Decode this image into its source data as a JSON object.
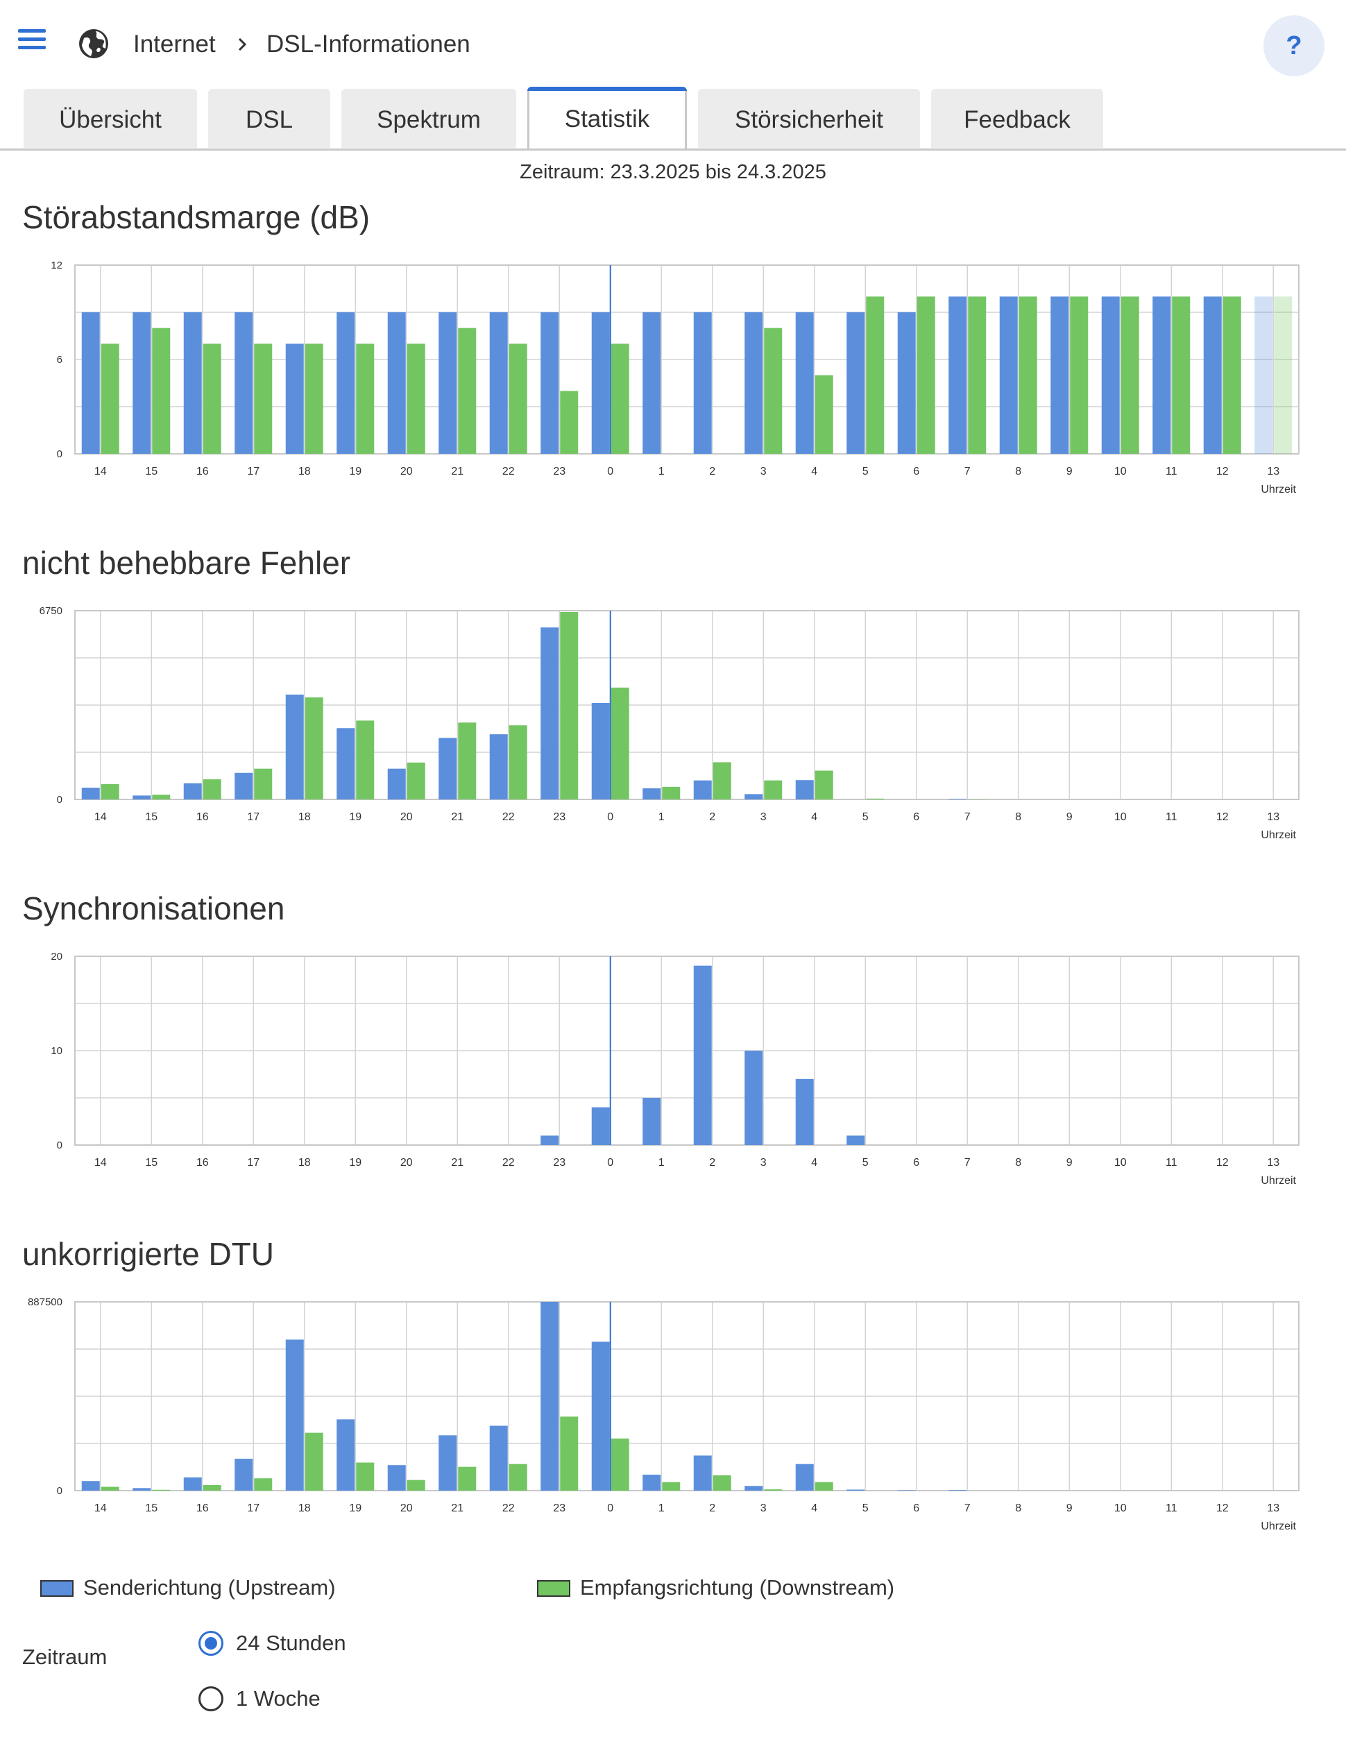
{
  "header": {
    "breadcrumb": [
      "Internet",
      "DSL-Informationen"
    ],
    "help_label": "?",
    "menu_icon": "hamburger-menu-icon",
    "section_icon": "globe-icon"
  },
  "tabs": [
    {
      "label": "Übersicht",
      "active": false
    },
    {
      "label": "DSL",
      "active": false
    },
    {
      "label": "Spektrum",
      "active": false
    },
    {
      "label": "Statistik",
      "active": true
    },
    {
      "label": "Störsicherheit",
      "active": false
    },
    {
      "label": "Feedback",
      "active": false
    }
  ],
  "period_text": "Zeitraum: 23.3.2025 bis 24.3.2025",
  "colors": {
    "upstream": "#5b8fdc",
    "downstream": "#73c562",
    "accent": "#2f6fd3",
    "grid": "#d4d4d4"
  },
  "legend": {
    "upstream": "Senderichtung (Upstream)",
    "downstream": "Empfangsrichtung (Downstream)"
  },
  "zeitraum": {
    "label": "Zeitraum",
    "options": [
      {
        "label": "24 Stunden",
        "checked": true
      },
      {
        "label": "1 Woche",
        "checked": false
      }
    ]
  },
  "chart_data": [
    {
      "type": "bar",
      "title": "Störabstandsmarge (dB)",
      "xlabel": "Uhrzeit",
      "ylabel": "",
      "ylim": [
        0,
        12
      ],
      "y_tick_labels": [
        "0",
        "6",
        "12"
      ],
      "categories": [
        "14",
        "15",
        "16",
        "17",
        "18",
        "19",
        "20",
        "21",
        "22",
        "23",
        "0",
        "1",
        "2",
        "3",
        "4",
        "5",
        "6",
        "7",
        "8",
        "9",
        "10",
        "11",
        "12",
        "13"
      ],
      "current_hour_index": 23,
      "series": [
        {
          "name": "Senderichtung (Upstream)",
          "values": [
            9,
            9,
            9,
            9,
            7,
            9,
            9,
            9,
            9,
            9,
            9,
            9,
            9,
            9,
            9,
            9,
            9,
            10,
            10,
            10,
            10,
            10,
            10,
            10
          ]
        },
        {
          "name": "Empfangsrichtung (Downstream)",
          "values": [
            7,
            8,
            7,
            7,
            7,
            7,
            7,
            8,
            7,
            4,
            7,
            null,
            null,
            8,
            5,
            10,
            10,
            10,
            10,
            10,
            10,
            10,
            10,
            10
          ]
        }
      ]
    },
    {
      "type": "bar",
      "title": "nicht behebbare Fehler",
      "xlabel": "Uhrzeit",
      "ylabel": "",
      "ylim": [
        0,
        6750
      ],
      "y_tick_labels": [
        "0",
        "6750"
      ],
      "categories": [
        "14",
        "15",
        "16",
        "17",
        "18",
        "19",
        "20",
        "21",
        "22",
        "23",
        "0",
        "1",
        "2",
        "3",
        "4",
        "5",
        "6",
        "7",
        "8",
        "9",
        "10",
        "11",
        "12",
        "13"
      ],
      "current_hour_index": null,
      "series": [
        {
          "name": "Senderichtung (Upstream)",
          "values": [
            420,
            140,
            580,
            950,
            3750,
            2550,
            1100,
            2200,
            2330,
            6150,
            3450,
            400,
            680,
            190,
            690,
            0,
            0,
            20,
            0,
            0,
            0,
            0,
            0,
            0
          ]
        },
        {
          "name": "Empfangsrichtung (Downstream)",
          "values": [
            550,
            170,
            720,
            1100,
            3650,
            2820,
            1320,
            2750,
            2650,
            6700,
            4000,
            450,
            1330,
            680,
            1030,
            30,
            0,
            10,
            0,
            0,
            0,
            0,
            0,
            0
          ]
        }
      ]
    },
    {
      "type": "bar",
      "title": "Synchronisationen",
      "xlabel": "Uhrzeit",
      "ylabel": "",
      "ylim": [
        0,
        20
      ],
      "y_tick_labels": [
        "0",
        "10",
        "20"
      ],
      "categories": [
        "14",
        "15",
        "16",
        "17",
        "18",
        "19",
        "20",
        "21",
        "22",
        "23",
        "0",
        "1",
        "2",
        "3",
        "4",
        "5",
        "6",
        "7",
        "8",
        "9",
        "10",
        "11",
        "12",
        "13"
      ],
      "current_hour_index": null,
      "series": [
        {
          "name": "Senderichtung (Upstream)",
          "values": [
            0,
            0,
            0,
            0,
            0,
            0,
            0,
            0,
            0,
            1,
            4,
            5,
            19,
            10,
            7,
            1,
            0,
            0,
            0,
            0,
            0,
            0,
            0,
            0
          ]
        },
        {
          "name": "Empfangsrichtung (Downstream)",
          "values": [
            0,
            0,
            0,
            0,
            0,
            0,
            0,
            0,
            0,
            0,
            0,
            0,
            0,
            0,
            0,
            0,
            0,
            0,
            0,
            0,
            0,
            0,
            0,
            0
          ]
        }
      ]
    },
    {
      "type": "bar",
      "title": "unkorrigierte DTU",
      "xlabel": "Uhrzeit",
      "ylabel": "",
      "ylim": [
        0,
        887500
      ],
      "y_tick_labels": [
        "0",
        "887500"
      ],
      "categories": [
        "14",
        "15",
        "16",
        "17",
        "18",
        "19",
        "20",
        "21",
        "22",
        "23",
        "0",
        "1",
        "2",
        "3",
        "4",
        "5",
        "6",
        "7",
        "8",
        "9",
        "10",
        "11",
        "12",
        "13"
      ],
      "current_hour_index": null,
      "series": [
        {
          "name": "Senderichtung (Upstream)",
          "values": [
            45000,
            12000,
            62000,
            150000,
            710000,
            335000,
            120000,
            260000,
            305000,
            887500,
            700000,
            75000,
            165000,
            22000,
            125000,
            5000,
            2000,
            3000,
            0,
            0,
            0,
            0,
            0,
            0
          ]
        },
        {
          "name": "Empfangsrichtung (Downstream)",
          "values": [
            18000,
            4000,
            26000,
            58000,
            272000,
            132000,
            50000,
            112000,
            125000,
            348000,
            245000,
            40000,
            72000,
            6000,
            40000,
            0,
            0,
            0,
            0,
            0,
            0,
            0,
            0,
            0
          ]
        }
      ]
    }
  ]
}
